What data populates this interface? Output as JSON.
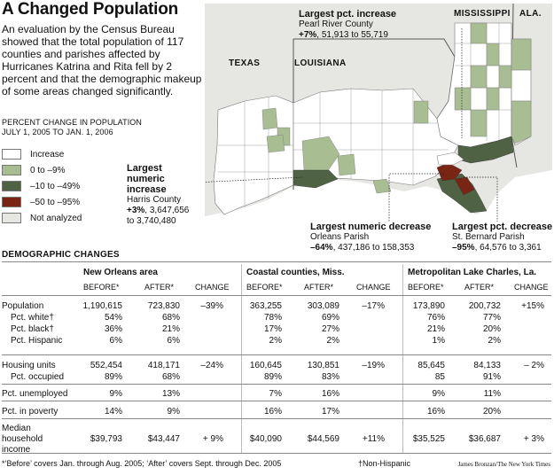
{
  "title": "A Changed Population",
  "intro": "An evaluation by the Census Bureau showed that the total population of 117 counties and parishes affected by Hurricanes Katrina and Rita fell by 2 percent and that the demographic makeup of some areas changed significantly.",
  "legend": {
    "heading_line1": "PERCENT CHANGE IN POPULATION",
    "heading_line2": "JULY 1, 2005 TO JAN. 1, 2006",
    "items": [
      {
        "label": "Increase",
        "color": "#ffffff"
      },
      {
        "label": "0 to –9%",
        "color": "#a9bd93"
      },
      {
        "label": "–10 to –49%",
        "color": "#4f6344"
      },
      {
        "label": "–50 to –95%",
        "color": "#7a2414"
      },
      {
        "label": "Not analyzed",
        "color": "#e6e6e3"
      }
    ]
  },
  "map": {
    "state_labels": [
      "TEXAS",
      "LOUISIANA",
      "MISSISSIPPI",
      "ALA."
    ],
    "callouts": {
      "pct_increase": {
        "heading": "Largest pct. increase",
        "place": "Pearl River County",
        "pct": "+7%",
        "numbers": ", 51,913 to 55,719"
      },
      "numeric_increase": {
        "heading_l1": "Largest",
        "heading_l2": "numeric",
        "heading_l3": "increase",
        "place": "Harris County",
        "pct": "+3%",
        "numbers_l1": ", 3,647,656",
        "numbers_l2": "to 3,740,480"
      },
      "numeric_decrease": {
        "heading": "Largest numeric decrease",
        "place": "Orleans Parish",
        "pct": "–64%",
        "numbers": ", 437,186 to 158,353"
      },
      "pct_decrease": {
        "heading": "Largest pct. decrease",
        "place": "St. Bernard Parish",
        "pct": "–95%",
        "numbers": ", 64,576 to 3,361"
      }
    }
  },
  "table": {
    "title": "DEMOGRAPHIC CHANGES",
    "groups": [
      "New Orleans area",
      "Coastal counties, Miss.",
      "Metropolitan Lake Charles, La."
    ],
    "col_headers": [
      "BEFORE*",
      "AFTER*",
      "CHANGE"
    ],
    "rows": [
      {
        "label": "Population",
        "values": [
          "1,190,615",
          "723,830",
          "–39%",
          "363,255",
          "303,089",
          "–17%",
          "173,890",
          "200,732",
          "+15%"
        ]
      },
      {
        "label": "Pct. white†",
        "values": [
          "54%",
          "68%",
          "",
          "78%",
          "69%",
          "",
          "76%",
          "77%",
          ""
        ]
      },
      {
        "label": "Pct. black†",
        "values": [
          "36%",
          "21%",
          "",
          "17%",
          "27%",
          "",
          "21%",
          "20%",
          ""
        ]
      },
      {
        "label": "Pct. Hispanic",
        "values": [
          "6%",
          "6%",
          "",
          "2%",
          "2%",
          "",
          "1%",
          "2%",
          ""
        ]
      },
      {
        "label": "Housing units",
        "values": [
          "552,454",
          "418,171",
          "–24%",
          "160,645",
          "130,851",
          "–19%",
          "85,645",
          "84,133",
          "– 2%"
        ]
      },
      {
        "label": "Pct. occupied",
        "values": [
          "89%",
          "68%",
          "",
          "89%",
          "83%",
          "",
          "85",
          "91%",
          ""
        ]
      },
      {
        "label": "Pct. unemployed",
        "values": [
          "9%",
          "13%",
          "",
          "7%",
          "16%",
          "",
          "9%",
          "11%",
          ""
        ]
      },
      {
        "label": "Pct. in poverty",
        "values": [
          "14%",
          "9%",
          "",
          "16%",
          "17%",
          "",
          "16%",
          "20%",
          ""
        ]
      },
      {
        "label": "Median",
        "label2": "household",
        "label3": "income",
        "values": [
          "$39,793",
          "$43,447",
          "+ 9%",
          "$40,090",
          "$44,569",
          "+11%",
          "$35,525",
          "$36,687",
          "+ 3%"
        ]
      }
    ]
  },
  "footnotes": {
    "before_after": "*‘Before’ covers Jan. through Aug. 2005; ‘After’ covers Sept. through Dec. 2005",
    "non_hispanic": "†Non-Hispanic",
    "credit": "James Bronzan/The New York Times"
  }
}
